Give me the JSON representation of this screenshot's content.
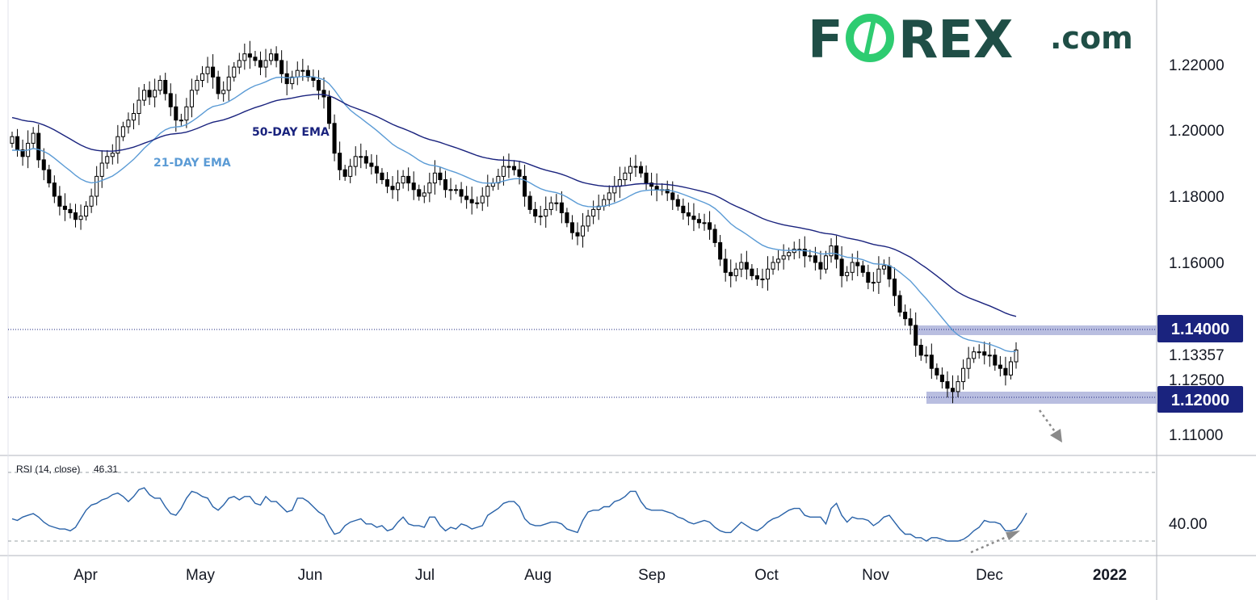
{
  "logo": {
    "main": "FOREX",
    "suffix": ".com",
    "o_letter": "O",
    "color": "#1f4e46",
    "accent": "#2ecc71"
  },
  "chart_data": {
    "type": "candlestick",
    "instrument": "",
    "price_axis": {
      "ticks": [
        "1.22000",
        "1.20000",
        "1.18000",
        "1.16000",
        "1.14000",
        "1.13357",
        "1.12500",
        "1.12000",
        "1.11000"
      ],
      "range": [
        1.105,
        1.233
      ]
    },
    "time_axis": [
      "Apr",
      "May",
      "Jun",
      "Jul",
      "Aug",
      "Sep",
      "Oct",
      "Nov",
      "Dec",
      "2022"
    ],
    "levels": [
      {
        "value": 1.14,
        "label": "1.14000",
        "style": "dotted",
        "zone": true
      },
      {
        "value": 1.12,
        "label": "1.12000",
        "style": "dotted",
        "zone": true
      }
    ],
    "last_price": {
      "value": 1.13357,
      "label": "1.13357"
    },
    "indicators": [
      {
        "name": "21-DAY EMA",
        "color": "#5b9bd5"
      },
      {
        "name": "50-DAY EMA",
        "color": "#1a237e"
      }
    ],
    "series": [
      {
        "name": "close",
        "values": [
          1.198,
          1.194,
          1.192,
          1.196,
          1.199,
          1.191,
          1.188,
          1.184,
          1.18,
          1.177,
          1.176,
          1.175,
          1.173,
          1.174,
          1.177,
          1.18,
          1.186,
          1.19,
          1.192,
          1.193,
          1.198,
          1.201,
          1.203,
          1.205,
          1.209,
          1.212,
          1.21,
          1.212,
          1.215,
          1.211,
          1.207,
          1.203,
          1.203,
          1.207,
          1.212,
          1.215,
          1.217,
          1.219,
          1.216,
          1.211,
          1.212,
          1.216,
          1.219,
          1.221,
          1.223,
          1.222,
          1.221,
          1.219,
          1.221,
          1.223,
          1.221,
          1.217,
          1.214,
          1.216,
          1.218,
          1.218,
          1.216,
          1.215,
          1.212,
          1.21,
          1.202,
          1.193,
          1.188,
          1.186,
          1.189,
          1.192,
          1.192,
          1.19,
          1.189,
          1.187,
          1.185,
          1.183,
          1.182,
          1.184,
          1.186,
          1.184,
          1.182,
          1.18,
          1.181,
          1.184,
          1.187,
          1.185,
          1.182,
          1.182,
          1.182,
          1.18,
          1.179,
          1.178,
          1.178,
          1.18,
          1.183,
          1.184,
          1.186,
          1.189,
          1.189,
          1.188,
          1.186,
          1.18,
          1.176,
          1.174,
          1.174,
          1.176,
          1.178,
          1.178,
          1.175,
          1.172,
          1.169,
          1.168,
          1.171,
          1.174,
          1.176,
          1.177,
          1.179,
          1.181,
          1.183,
          1.185,
          1.187,
          1.189,
          1.189,
          1.187,
          1.184,
          1.183,
          1.182,
          1.182,
          1.181,
          1.179,
          1.177,
          1.175,
          1.174,
          1.173,
          1.172,
          1.172,
          1.17,
          1.166,
          1.161,
          1.157,
          1.156,
          1.158,
          1.16,
          1.158,
          1.156,
          1.155,
          1.155,
          1.158,
          1.16,
          1.161,
          1.162,
          1.163,
          1.164,
          1.164,
          1.162,
          1.162,
          1.16,
          1.158,
          1.162,
          1.165,
          1.161,
          1.156,
          1.157,
          1.16,
          1.159,
          1.157,
          1.154,
          1.154,
          1.158,
          1.159,
          1.155,
          1.15,
          1.145,
          1.143,
          1.141,
          1.135,
          1.132,
          1.132,
          1.128,
          1.126,
          1.124,
          1.122,
          1.121,
          1.124,
          1.128,
          1.131,
          1.133,
          1.133,
          1.132,
          1.132,
          1.129,
          1.128,
          1.126,
          1.13,
          1.13357
        ]
      },
      {
        "name": "RSI (14, close)",
        "last_label": "46.31",
        "values": [
          43,
          42,
          44,
          45,
          46,
          44,
          41,
          39,
          38,
          37,
          37,
          36,
          38,
          43,
          48,
          51,
          52,
          54,
          55,
          57,
          58,
          56,
          53,
          56,
          60,
          61,
          57,
          55,
          55,
          50,
          46,
          45,
          49,
          55,
          59,
          58,
          56,
          55,
          50,
          48,
          51,
          55,
          56,
          54,
          56,
          56,
          52,
          51,
          56,
          53,
          53,
          50,
          47,
          48,
          55,
          55,
          53,
          50,
          47,
          45,
          39,
          34,
          35,
          39,
          41,
          42,
          43,
          40,
          40,
          38,
          39,
          36,
          37,
          41,
          44,
          40,
          39,
          39,
          38,
          44,
          44,
          39,
          36,
          38,
          37,
          40,
          39,
          37,
          38,
          39,
          45,
          47,
          49,
          52,
          53,
          53,
          50,
          43,
          40,
          39,
          39,
          40,
          41,
          41,
          40,
          37,
          36,
          35,
          42,
          47,
          48,
          48,
          50,
          50,
          53,
          54,
          56,
          59,
          59,
          53,
          49,
          48,
          48,
          48,
          47,
          46,
          44,
          43,
          41,
          40,
          41,
          42,
          41,
          38,
          36,
          35,
          35,
          38,
          41,
          39,
          37,
          36,
          38,
          41,
          43,
          44,
          46,
          48,
          49,
          49,
          45,
          44,
          44,
          44,
          40,
          49,
          52,
          45,
          41,
          44,
          43,
          43,
          42,
          39,
          41,
          44,
          45,
          41,
          37,
          34,
          34,
          32,
          32,
          30,
          32,
          32,
          31,
          30,
          30,
          30,
          31,
          33,
          36,
          38,
          42,
          41,
          41,
          40,
          36,
          36,
          37,
          41,
          46.31
        ]
      }
    ]
  }
}
